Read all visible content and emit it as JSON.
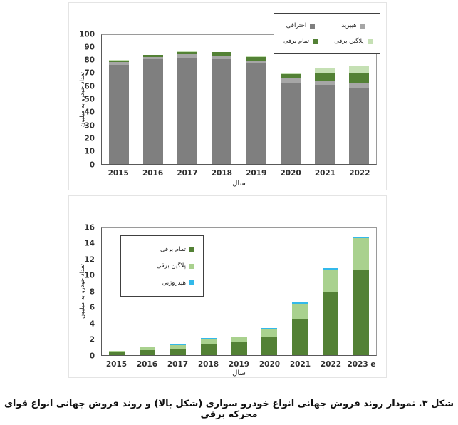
{
  "caption": "شکل ۳. نمودار روند فروش جهانی انواع خودرو سواری (شکل بالا) و روند فروش جهانی انواع قوای محرکه برقی",
  "colors": {
    "combustion_gray": "#7F7F7F",
    "hybrid_gray": "#A6A6A6",
    "full_electric_green": "#538135",
    "plugin_light_green_top": "#C5E0B4",
    "plugin_light_green_bottom": "#A9D18E",
    "hydrogen_blue": "#33B9EA",
    "axis_line": "#595959",
    "panel_border": "#E4E4E4"
  },
  "chart_data": [
    {
      "id": "top",
      "type": "bar",
      "stacked": true,
      "title": "",
      "xlabel": "سال",
      "ylabel": "تعداد خودرو به میلیون",
      "ylim": [
        0,
        100
      ],
      "ytick_step": 10,
      "grid": false,
      "legend_position": "top-right",
      "legend_layout": "grid-2-col",
      "categories": [
        "2015",
        "2016",
        "2017",
        "2018",
        "2019",
        "2020",
        "2021",
        "2022"
      ],
      "series": [
        {
          "name": "احتراقی",
          "color": "#7F7F7F",
          "values": [
            77,
            81,
            82.5,
            81.5,
            78,
            63,
            61.5,
            59
          ]
        },
        {
          "name": "هیبرید",
          "color": "#A6A6A6",
          "values": [
            2,
            2,
            2.5,
            2.5,
            2,
            3.5,
            3,
            4
          ]
        },
        {
          "name": "تمام برقی",
          "color": "#538135",
          "values": [
            1,
            1.5,
            2,
            2.5,
            3,
            3,
            6,
            8
          ]
        },
        {
          "name": "پلاگین برقی",
          "color": "#C5E0B4",
          "values": [
            0.5,
            0.3,
            0.2,
            0.3,
            0.5,
            0.5,
            3.5,
            5.5
          ]
        }
      ]
    },
    {
      "id": "bottom",
      "type": "bar",
      "stacked": true,
      "title": "",
      "xlabel": "سال",
      "ylabel": "تعداد خودرو به میلیون",
      "ylim": [
        0,
        16
      ],
      "ytick_step": 2,
      "grid": false,
      "legend_position": "upper-left",
      "legend_layout": "column",
      "categories": [
        "2015",
        "2016",
        "2017",
        "2018",
        "2019",
        "2020",
        "2021",
        "2022",
        "2023 e"
      ],
      "series": [
        {
          "name": "تمام برقی",
          "color": "#538135",
          "values": [
            0.4,
            0.6,
            0.85,
            1.45,
            1.6,
            2.3,
            4.5,
            7.9,
            10.7
          ]
        },
        {
          "name": "پلاگین برقی",
          "color": "#A9D18E",
          "values": [
            0.1,
            0.35,
            0.4,
            0.6,
            0.65,
            1.05,
            2.0,
            2.9,
            4.0
          ]
        },
        {
          "name": "هیدروژنی",
          "color": "#33B9EA",
          "values": [
            0,
            0.05,
            0.1,
            0.1,
            0.1,
            0.1,
            0.15,
            0.15,
            0.2
          ]
        }
      ]
    }
  ]
}
